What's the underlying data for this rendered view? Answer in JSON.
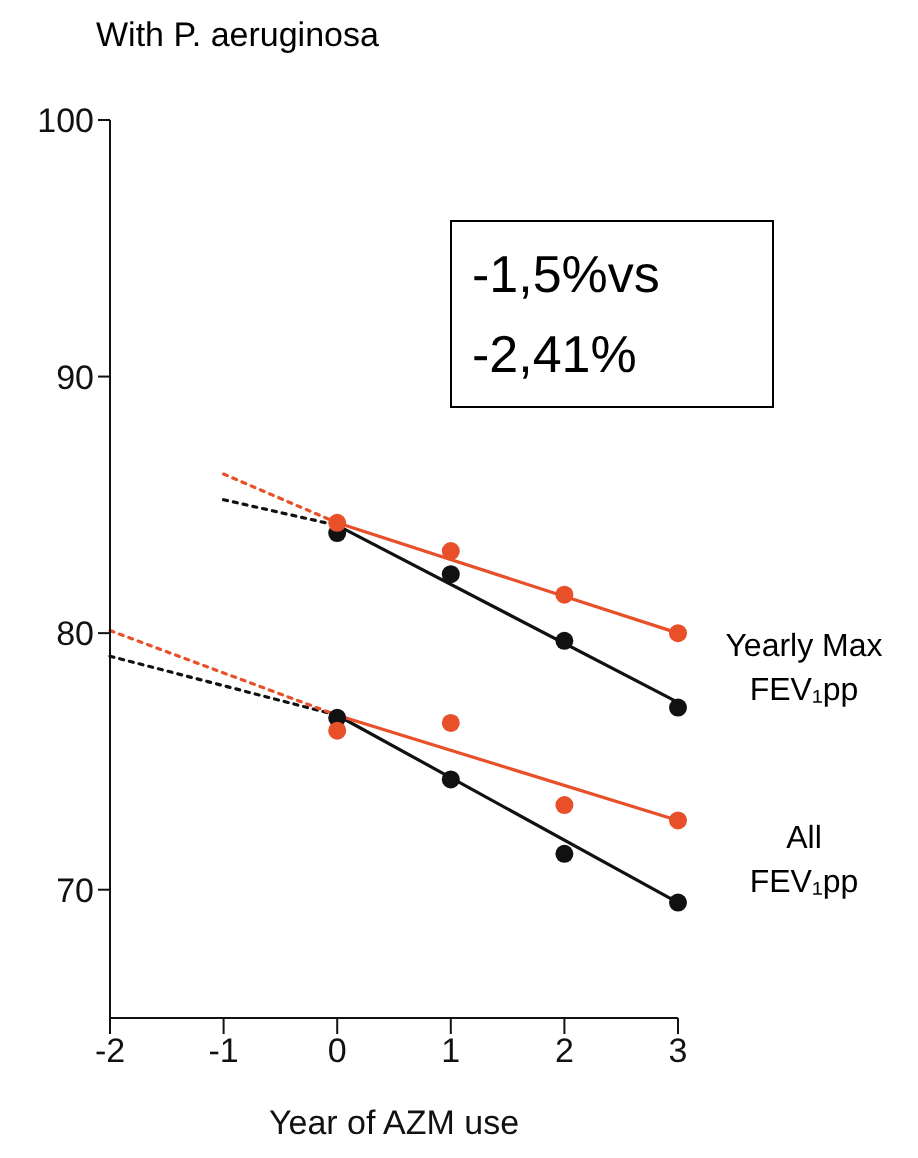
{
  "chart_data": {
    "type": "scatter",
    "title": "With P. aeruginosa",
    "xlabel": "Year of AZM use",
    "xlim": [
      -2,
      3
    ],
    "xticks": [
      -2,
      -1,
      0,
      1,
      2,
      3
    ],
    "ylim": [
      65,
      100
    ],
    "yticks": [
      70,
      80,
      90,
      100
    ],
    "marker": "circle",
    "series": [
      {
        "color": "#111111",
        "x": [
          0,
          1,
          2,
          3
        ],
        "values": [
          83.9,
          82.3,
          79.7,
          77.1
        ]
      },
      {
        "color": "#e8502a",
        "x": [
          0,
          1,
          2,
          3
        ],
        "values": [
          84.3,
          83.2,
          81.5,
          80.0
        ]
      },
      {
        "color": "#111111",
        "x": [
          0,
          1,
          2,
          3
        ],
        "values": [
          76.7,
          74.3,
          71.4,
          69.5
        ]
      },
      {
        "color": "#e8502a",
        "x": [
          0,
          1,
          2,
          3
        ],
        "values": [
          76.2,
          76.5,
          73.3,
          72.7
        ]
      },
      {
        "type": "line",
        "color": "#111111",
        "marker": "none",
        "line_style": "solid",
        "x": [
          0,
          3
        ],
        "values": [
          84.2,
          77.3
        ]
      },
      {
        "type": "line",
        "color": "#e8502a",
        "marker": "none",
        "line_style": "solid",
        "x": [
          0,
          3
        ],
        "values": [
          84.3,
          80.0
        ]
      },
      {
        "type": "line",
        "color": "#111111",
        "marker": "none",
        "line_style": "solid",
        "x": [
          0,
          3
        ],
        "values": [
          76.8,
          69.5
        ]
      },
      {
        "type": "line",
        "color": "#e8502a",
        "marker": "none",
        "line_style": "solid",
        "x": [
          0,
          3
        ],
        "values": [
          76.8,
          72.7
        ]
      },
      {
        "type": "line",
        "color": "#111111",
        "marker": "none",
        "line_style": "dotted",
        "x": [
          -1,
          0
        ],
        "values": [
          85.2,
          84.2
        ]
      },
      {
        "type": "line",
        "color": "#e8502a",
        "marker": "none",
        "line_style": "dotted",
        "x": [
          -1,
          0
        ],
        "values": [
          86.2,
          84.3
        ]
      },
      {
        "type": "line",
        "color": "#111111",
        "marker": "none",
        "line_style": "dotted",
        "x": [
          -2,
          0
        ],
        "values": [
          79.1,
          76.8
        ]
      },
      {
        "type": "line",
        "color": "#e8502a",
        "marker": "none",
        "line_style": "dotted",
        "x": [
          -2,
          0
        ],
        "values": [
          80.1,
          76.8
        ]
      }
    ],
    "annotations": [
      "-1,5%vs -2,41%",
      "Yearly Max FEV₁pp",
      "All FEV₁pp"
    ]
  }
}
